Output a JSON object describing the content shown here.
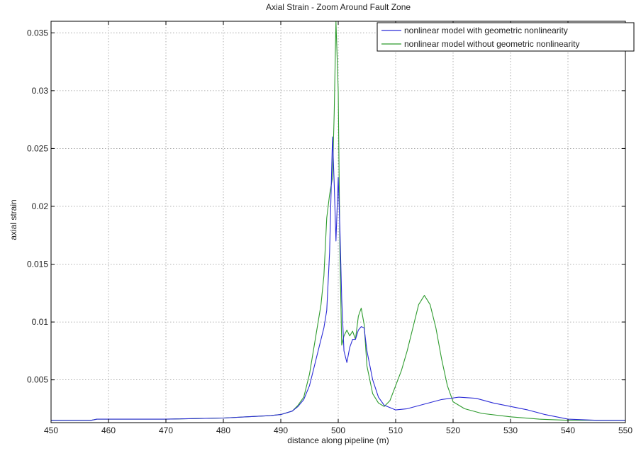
{
  "chart_data": {
    "type": "line",
    "title": "Axial Strain - Zoom Around Fault Zone",
    "xlabel": "distance along pipeline (m)",
    "ylabel": "axial strain",
    "xlim": [
      450,
      550
    ],
    "ylim": [
      0.0013,
      0.036
    ],
    "xticks": [
      450,
      460,
      470,
      480,
      490,
      500,
      510,
      520,
      530,
      540,
      550
    ],
    "yticks": [
      0.005,
      0.01,
      0.015,
      0.02,
      0.025,
      0.03,
      0.035
    ],
    "ytick_labels": [
      "0.005",
      "0.01",
      "0.015",
      "0.02",
      "0.025",
      "0.03",
      "0.035"
    ],
    "grid": true,
    "legend_position": "top-right",
    "series": [
      {
        "name": "nonlinear model with geometric nonlinearity",
        "color": "#2b2bd6",
        "x": [
          450,
          457,
          458,
          470,
          480,
          484,
          488,
          490,
          492,
          493,
          494,
          495,
          496,
          497,
          497.5,
          498,
          498.5,
          499,
          499.3,
          499.6,
          500,
          500.3,
          500.6,
          501,
          501.5,
          502,
          502.5,
          503,
          503.5,
          504,
          504.5,
          505,
          506,
          507,
          508,
          509,
          510,
          512,
          515,
          518,
          521,
          524,
          527,
          530,
          533,
          536,
          540,
          545,
          550
        ],
        "y": [
          0.0015,
          0.0015,
          0.0016,
          0.0016,
          0.0017,
          0.0018,
          0.0019,
          0.002,
          0.0023,
          0.0027,
          0.0033,
          0.0045,
          0.0065,
          0.0085,
          0.0095,
          0.011,
          0.016,
          0.026,
          0.022,
          0.017,
          0.0225,
          0.018,
          0.012,
          0.0075,
          0.0065,
          0.0078,
          0.0085,
          0.0085,
          0.0093,
          0.0096,
          0.0095,
          0.0075,
          0.005,
          0.0035,
          0.0028,
          0.0026,
          0.0024,
          0.0025,
          0.0029,
          0.0033,
          0.0035,
          0.0034,
          0.003,
          0.0027,
          0.0024,
          0.002,
          0.0016,
          0.0015,
          0.0015
        ]
      },
      {
        "name": "nonlinear model without geometric nonlinearity",
        "color": "#2e9b2e",
        "x": [
          450,
          457,
          458,
          470,
          480,
          484,
          488,
          490,
          492,
          493,
          494,
          495,
          496,
          497,
          497.5,
          498,
          498.5,
          499,
          499.3,
          499.6,
          500,
          500.3,
          500.6,
          501,
          501.5,
          502,
          502.5,
          503,
          503.5,
          504,
          504.5,
          505,
          506,
          507,
          508,
          509,
          510,
          511,
          512,
          513,
          514,
          515,
          516,
          517,
          518,
          519,
          520,
          522,
          525,
          530,
          535,
          540,
          545,
          550
        ],
        "y": [
          0.0015,
          0.0015,
          0.0016,
          0.0016,
          0.0017,
          0.0018,
          0.0019,
          0.002,
          0.0023,
          0.0028,
          0.0035,
          0.0055,
          0.0085,
          0.0115,
          0.014,
          0.019,
          0.021,
          0.0225,
          0.028,
          0.036,
          0.03,
          0.016,
          0.008,
          0.0088,
          0.0093,
          0.0088,
          0.0092,
          0.0085,
          0.0105,
          0.0112,
          0.0098,
          0.0062,
          0.0038,
          0.003,
          0.0027,
          0.0032,
          0.0045,
          0.0058,
          0.0075,
          0.0095,
          0.0115,
          0.0123,
          0.0115,
          0.0095,
          0.0068,
          0.0045,
          0.0031,
          0.0025,
          0.0021,
          0.0018,
          0.0016,
          0.0015,
          0.0015,
          0.0015
        ]
      }
    ]
  }
}
